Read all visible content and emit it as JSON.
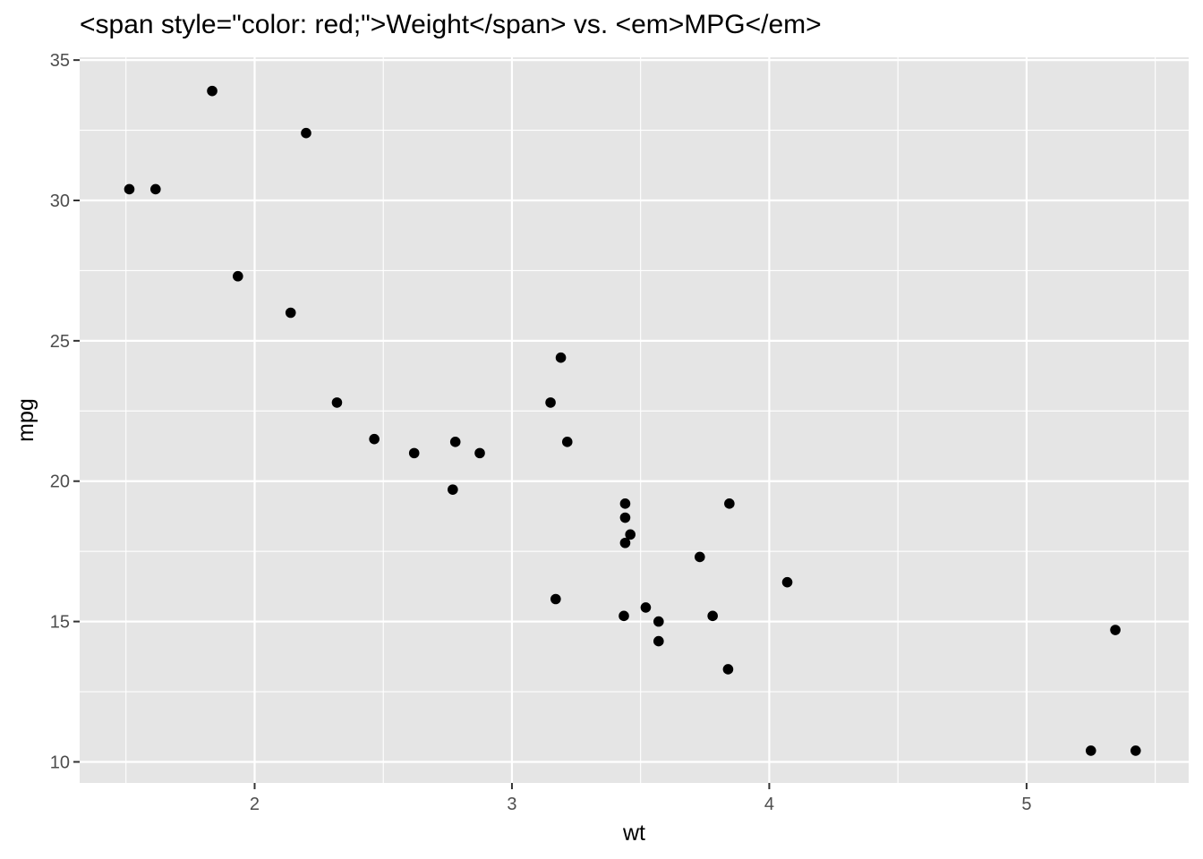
{
  "chart_data": {
    "type": "scatter",
    "title": "<span style=\"color: red;\">Weight</span> vs. <em>MPG</em>",
    "xlabel": "wt",
    "ylabel": "mpg",
    "xlim": [
      1.32,
      5.63
    ],
    "ylim": [
      9.25,
      35.1
    ],
    "x_ticks": [
      2,
      3,
      4,
      5
    ],
    "x_minor_ticks": [
      1.5,
      2.5,
      3.5,
      4.5,
      5.5
    ],
    "y_ticks": [
      10,
      15,
      20,
      25,
      30,
      35
    ],
    "y_minor_ticks": [
      12.5,
      17.5,
      22.5,
      27.5,
      32.5
    ],
    "grid": true,
    "colors": {
      "panel": "#e5e5e5",
      "grid": "#ffffff",
      "point": "#000000",
      "tick_text": "#4d4d4d",
      "axis_tick": "#333333"
    },
    "points": [
      {
        "x": 2.62,
        "y": 21.0
      },
      {
        "x": 2.875,
        "y": 21.0
      },
      {
        "x": 2.32,
        "y": 22.8
      },
      {
        "x": 3.215,
        "y": 21.4
      },
      {
        "x": 3.44,
        "y": 18.7
      },
      {
        "x": 3.46,
        "y": 18.1
      },
      {
        "x": 3.57,
        "y": 14.3
      },
      {
        "x": 3.19,
        "y": 24.4
      },
      {
        "x": 3.15,
        "y": 22.8
      },
      {
        "x": 3.44,
        "y": 19.2
      },
      {
        "x": 3.44,
        "y": 17.8
      },
      {
        "x": 4.07,
        "y": 16.4
      },
      {
        "x": 3.73,
        "y": 17.3
      },
      {
        "x": 3.78,
        "y": 15.2
      },
      {
        "x": 5.25,
        "y": 10.4
      },
      {
        "x": 5.424,
        "y": 10.4
      },
      {
        "x": 5.345,
        "y": 14.7
      },
      {
        "x": 2.2,
        "y": 32.4
      },
      {
        "x": 1.615,
        "y": 30.4
      },
      {
        "x": 1.835,
        "y": 33.9
      },
      {
        "x": 2.465,
        "y": 21.5
      },
      {
        "x": 3.52,
        "y": 15.5
      },
      {
        "x": 3.435,
        "y": 15.2
      },
      {
        "x": 3.84,
        "y": 13.3
      },
      {
        "x": 3.845,
        "y": 19.2
      },
      {
        "x": 1.935,
        "y": 27.3
      },
      {
        "x": 2.14,
        "y": 26.0
      },
      {
        "x": 1.513,
        "y": 30.4
      },
      {
        "x": 3.17,
        "y": 15.8
      },
      {
        "x": 2.77,
        "y": 19.7
      },
      {
        "x": 3.57,
        "y": 15.0
      },
      {
        "x": 2.78,
        "y": 21.4
      }
    ]
  }
}
